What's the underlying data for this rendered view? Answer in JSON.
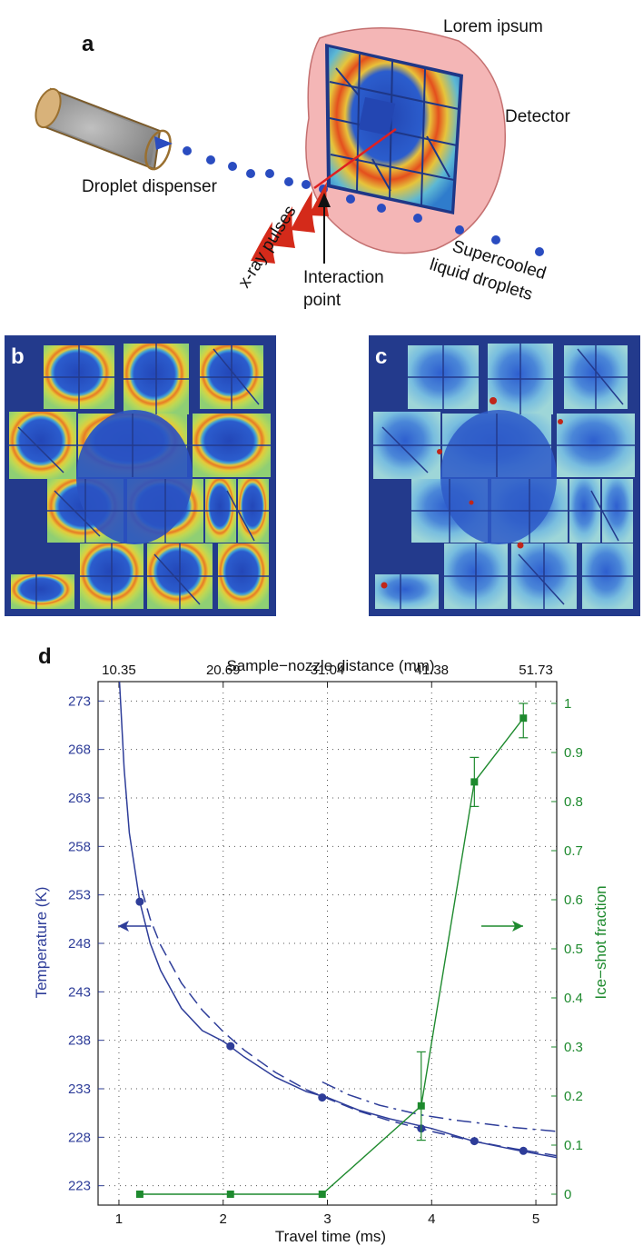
{
  "panel_a": {
    "letter": "a",
    "top_label": "Lorem ipsum",
    "detector_label": "Detector",
    "dispenser_label": "Droplet dispenser",
    "pulses_label": "x-ray pulses",
    "interaction_line1": "Interaction",
    "interaction_line2": "point",
    "droplets_line1": "Supercooled",
    "droplets_line2": "liquid droplets"
  },
  "panel_b": {
    "letter": "b"
  },
  "panel_c": {
    "letter": "c"
  },
  "panel_d": {
    "letter": "d"
  },
  "colors": {
    "temperature_axis": "#2e3d99",
    "ice_axis": "#1e8a2e",
    "detector_disc": "#f4b6b6",
    "detector_bg": "#233a8c",
    "droplet": "#2a4cc0",
    "pulse": "#d42a1a"
  },
  "chart_data": {
    "type": "line",
    "xlabel": "Travel time (ms)",
    "x2label": "Sample−nozzle distance (mm)",
    "ylabel": "Temperature (K)",
    "y2label": "Ice−shot fraction",
    "xlim": [
      0.8,
      5.2
    ],
    "ylim": [
      221,
      275
    ],
    "y2lim": [
      -0.0222,
      1.0444
    ],
    "x_ticks": [
      "1",
      "2",
      "3",
      "4",
      "5"
    ],
    "x_tick_values": [
      1,
      2,
      3,
      4,
      5
    ],
    "x2_ticks": [
      "10.35",
      "20.69",
      "31.04",
      "41.38",
      "51.73"
    ],
    "x2_tick_values": [
      1,
      2,
      3,
      4,
      5
    ],
    "y_ticks": [
      "223",
      "228",
      "233",
      "238",
      "243",
      "248",
      "253",
      "258",
      "263",
      "268",
      "273"
    ],
    "y_tick_values": [
      223,
      228,
      233,
      238,
      243,
      248,
      253,
      258,
      263,
      268,
      273
    ],
    "y2_ticks": [
      "0",
      "0.1",
      "0.2",
      "0.3",
      "0.4",
      "0.5",
      "0.6",
      "0.7",
      "0.8",
      "0.9",
      "1"
    ],
    "y2_tick_values": [
      0,
      0.1,
      0.2,
      0.3,
      0.4,
      0.5,
      0.6,
      0.7,
      0.8,
      0.9,
      1
    ],
    "grid": true,
    "series": [
      {
        "axis": "left",
        "style": "markers",
        "x": [
          1.2,
          2.07,
          2.95,
          3.9,
          4.41,
          4.88
        ],
        "y": [
          252.3,
          237.4,
          232.1,
          228.9,
          227.6,
          226.6
        ]
      },
      {
        "axis": "left",
        "style": "solid",
        "x": [
          1.0,
          1.05,
          1.1,
          1.2,
          1.3,
          1.4,
          1.6,
          1.8,
          2.0,
          2.2,
          2.5,
          2.8,
          3.0,
          3.3,
          3.6,
          4.0,
          4.4,
          4.8,
          5.2
        ],
        "y": [
          276,
          266,
          259.4,
          252.3,
          248.0,
          245.2,
          241.3,
          239.0,
          237.9,
          236.3,
          234.2,
          232.7,
          232.1,
          230.8,
          229.9,
          228.9,
          227.6,
          226.7,
          225.9
        ]
      },
      {
        "axis": "left",
        "style": "dashed",
        "x": [
          1.22,
          1.3,
          1.4,
          1.6,
          1.8,
          2.0,
          2.2,
          2.5,
          2.8,
          3.0,
          3.3,
          3.6,
          4.0,
          4.4,
          4.8,
          5.2
        ],
        "y": [
          253.5,
          250.5,
          247.8,
          243.9,
          241.1,
          238.9,
          237.0,
          234.7,
          232.9,
          232.0,
          230.7,
          229.7,
          228.6,
          227.6,
          226.8,
          226.1
        ]
      },
      {
        "axis": "left",
        "style": "dashdot",
        "x": [
          2.95,
          3.2,
          3.5,
          3.9,
          4.2,
          4.5,
          4.8,
          5.2
        ],
        "y": [
          233.7,
          232.4,
          231.3,
          230.3,
          229.8,
          229.4,
          229.0,
          228.6
        ]
      },
      {
        "axis": "right",
        "style": "line-markers",
        "x": [
          1.2,
          2.07,
          2.95,
          3.9,
          4.41,
          4.88
        ],
        "y": [
          0.0,
          0.0,
          0.0,
          0.18,
          0.84,
          0.97
        ],
        "err_low": [
          0,
          0,
          0,
          0.07,
          0.05,
          0.04
        ],
        "err_high": [
          0,
          0,
          0,
          0.11,
          0.05,
          0.03
        ]
      }
    ]
  }
}
